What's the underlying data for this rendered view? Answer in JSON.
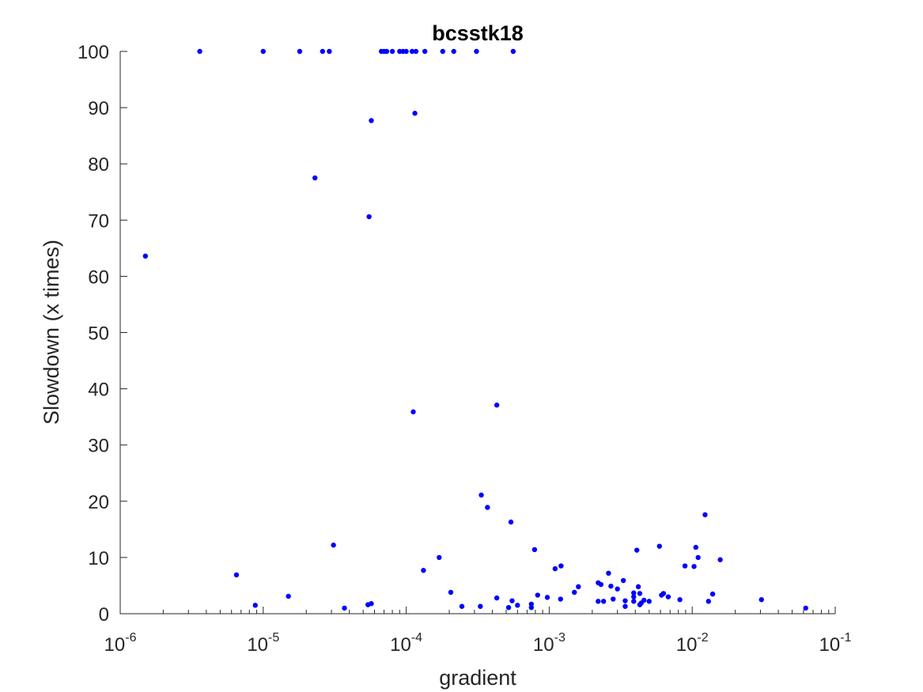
{
  "chart_data": {
    "type": "scatter",
    "title": "bcsstk18",
    "xlabel": "gradient",
    "ylabel": "Slowdown (x times)",
    "xscale": "log",
    "xlim": [
      1e-06,
      0.1
    ],
    "ylim": [
      0,
      100
    ],
    "grid": false,
    "marker_color": "#0000ff",
    "x_tick_labels": [
      {
        "base": "10",
        "exp": "-6"
      },
      {
        "base": "10",
        "exp": "-5"
      },
      {
        "base": "10",
        "exp": "-4"
      },
      {
        "base": "10",
        "exp": "-3"
      },
      {
        "base": "10",
        "exp": "-2"
      },
      {
        "base": "10",
        "exp": "-1"
      }
    ],
    "y_tick_labels": [
      "0",
      "10",
      "20",
      "30",
      "40",
      "50",
      "60",
      "70",
      "80",
      "90",
      "100"
    ],
    "series": [
      {
        "points": [
          [
            1.5e-06,
            63.6
          ],
          [
            3.6e-06,
            100
          ],
          [
            6.5e-06,
            6.9
          ],
          [
            8.8e-06,
            1.5
          ],
          [
            1e-05,
            100
          ],
          [
            1.5e-05,
            3.1
          ],
          [
            1.8e-05,
            100
          ],
          [
            2.3e-05,
            77.5
          ],
          [
            2.6e-05,
            100
          ],
          [
            2.9e-05,
            100
          ],
          [
            3.1e-05,
            12.2
          ],
          [
            3.7e-05,
            1.0
          ],
          [
            5.4e-05,
            1.6
          ],
          [
            5.5e-05,
            70.6
          ],
          [
            5.7e-05,
            1.8
          ],
          [
            5.7e-05,
            87.7
          ],
          [
            6.7e-05,
            100
          ],
          [
            7e-05,
            100
          ],
          [
            7.3e-05,
            100
          ],
          [
            8e-05,
            100
          ],
          [
            9e-05,
            100
          ],
          [
            9.5e-05,
            100
          ],
          [
            0.0001,
            100
          ],
          [
            0.00011,
            100
          ],
          [
            0.000112,
            35.9
          ],
          [
            0.000115,
            89
          ],
          [
            0.000117,
            100
          ],
          [
            0.000132,
            7.7
          ],
          [
            0.000135,
            100
          ],
          [
            0.00017,
            10
          ],
          [
            0.00018,
            100
          ],
          [
            0.000205,
            3.8
          ],
          [
            0.000215,
            100
          ],
          [
            0.000245,
            1.3
          ],
          [
            0.00031,
            100
          ],
          [
            0.00033,
            1.3
          ],
          [
            0.000335,
            21.1
          ],
          [
            0.00037,
            18.9
          ],
          [
            0.00043,
            2.8
          ],
          [
            0.00043,
            37.1
          ],
          [
            0.00052,
            1.1
          ],
          [
            0.00054,
            16.3
          ],
          [
            0.00055,
            2.3
          ],
          [
            0.00056,
            100
          ],
          [
            0.0006,
            1.5
          ],
          [
            0.00075,
            1.1
          ],
          [
            0.00075,
            1.7
          ],
          [
            0.00079,
            11.4
          ],
          [
            0.00083,
            3.3
          ],
          [
            0.00097,
            2.9
          ],
          [
            0.0011,
            8.0
          ],
          [
            0.0012,
            2.6
          ],
          [
            0.00121,
            8.5
          ],
          [
            0.0015,
            3.8
          ],
          [
            0.0016,
            4.8
          ],
          [
            0.0022,
            2.2
          ],
          [
            0.0022,
            5.5
          ],
          [
            0.0023,
            5.2
          ],
          [
            0.0024,
            2.2
          ],
          [
            0.0026,
            7.2
          ],
          [
            0.0027,
            4.9
          ],
          [
            0.0028,
            2.6
          ],
          [
            0.003,
            4.4
          ],
          [
            0.0033,
            5.9
          ],
          [
            0.0034,
            1.3
          ],
          [
            0.0034,
            2.3
          ],
          [
            0.0039,
            3.7
          ],
          [
            0.0039,
            3.0
          ],
          [
            0.0039,
            2.2
          ],
          [
            0.0041,
            11.3
          ],
          [
            0.0042,
            4.8
          ],
          [
            0.0043,
            1.6
          ],
          [
            0.0043,
            3.6
          ],
          [
            0.0044,
            1.9
          ],
          [
            0.0046,
            2.4
          ],
          [
            0.005,
            2.2
          ],
          [
            0.0059,
            12
          ],
          [
            0.0061,
            3.3
          ],
          [
            0.0063,
            3.6
          ],
          [
            0.0068,
            3.0
          ],
          [
            0.0082,
            2.5
          ],
          [
            0.0089,
            8.5
          ],
          [
            0.0103,
            8.4
          ],
          [
            0.0106,
            11.8
          ],
          [
            0.011,
            10.0
          ],
          [
            0.0123,
            17.6
          ],
          [
            0.013,
            2.2
          ],
          [
            0.0139,
            3.5
          ],
          [
            0.0157,
            9.6
          ],
          [
            0.0305,
            2.5
          ],
          [
            0.0622,
            1.0
          ]
        ]
      }
    ]
  }
}
